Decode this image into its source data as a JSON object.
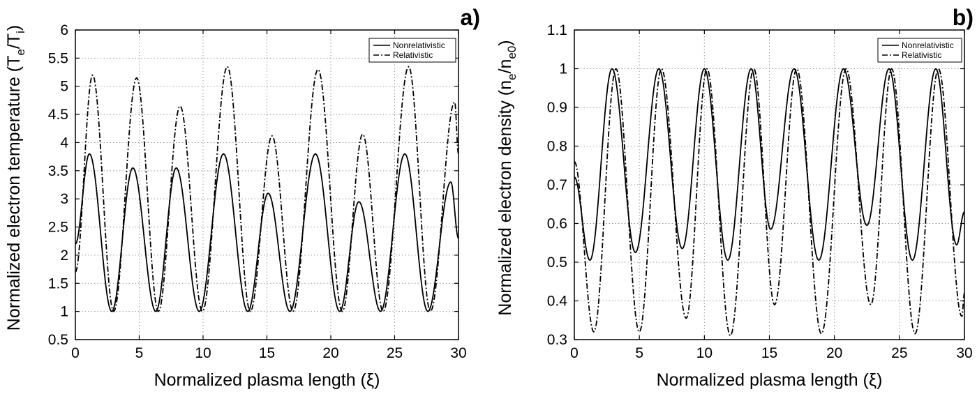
{
  "chart_data": [
    {
      "type": "line",
      "panel_label": "a)",
      "xlabel": "Normalized plasma length (ξ)",
      "ylabel": "Normalized electron temperature (T",
      "ylabel_sub1": "e",
      "ylabel_mid": "/T",
      "ylabel_sub2": "i",
      "ylabel_end": ")",
      "xlim": [
        0,
        30
      ],
      "ylim": [
        0.5,
        6
      ],
      "xticks": [
        "0",
        "5",
        "10",
        "15",
        "20",
        "25",
        "30"
      ],
      "yticks": [
        "0.5",
        "1",
        "1.5",
        "2",
        "2.5",
        "3",
        "3.5",
        "4",
        "4.5",
        "5",
        "5.5",
        "6"
      ],
      "grid": true,
      "legend_position": "top-right",
      "series": [
        {
          "name": "Nonrelativistic",
          "style": "solid",
          "x": [
            0,
            1.1,
            2.85,
            4.5,
            6.3,
            7.9,
            9.7,
            11.6,
            13.5,
            15.1,
            16.8,
            18.8,
            20.7,
            22.2,
            23.9,
            25.8,
            27.6,
            29.4,
            30
          ],
          "y": [
            2.2,
            3.8,
            1.0,
            3.55,
            1.0,
            3.55,
            1.0,
            3.8,
            1.0,
            3.1,
            1.0,
            3.8,
            1.0,
            2.95,
            1.0,
            3.8,
            1.0,
            3.3,
            2.3
          ]
        },
        {
          "name": "Relativistic",
          "style": "dashdot",
          "x": [
            0,
            1.35,
            3.0,
            4.8,
            6.5,
            8.2,
            9.95,
            11.9,
            13.7,
            15.4,
            17.05,
            19.0,
            20.9,
            22.5,
            24.1,
            26.1,
            27.8,
            29.7,
            30
          ],
          "y": [
            1.7,
            5.2,
            1.0,
            5.15,
            1.0,
            4.65,
            1.0,
            5.35,
            1.0,
            4.12,
            1.0,
            5.3,
            1.0,
            4.15,
            1.0,
            5.35,
            1.0,
            4.72,
            3.8
          ]
        }
      ]
    },
    {
      "type": "line",
      "panel_label": "b)",
      "xlabel": "Normalized plasma length (ξ)",
      "ylabel": "Normalized electron density (n",
      "ylabel_sub1": "e",
      "ylabel_mid": "/n",
      "ylabel_sub2": "e0",
      "ylabel_end": ")",
      "xlim": [
        0,
        30
      ],
      "ylim": [
        0.3,
        1.1
      ],
      "xticks": [
        "0",
        "5",
        "10",
        "15",
        "20",
        "25",
        "30"
      ],
      "yticks": [
        "0.3",
        "0.4",
        "0.5",
        "0.6",
        "0.7",
        "0.8",
        "0.9",
        "1",
        "1.1"
      ],
      "grid": true,
      "legend_position": "top-right",
      "series": [
        {
          "name": "Nonrelativistic",
          "style": "solid",
          "x": [
            0,
            1.2,
            2.9,
            4.7,
            6.5,
            8.3,
            10.0,
            11.8,
            13.6,
            15.1,
            16.9,
            18.8,
            20.7,
            22.5,
            24.2,
            26.0,
            27.8,
            29.4,
            30
          ],
          "y": [
            0.72,
            0.505,
            1.0,
            0.525,
            1.0,
            0.535,
            1.0,
            0.505,
            1.0,
            0.585,
            1.0,
            0.505,
            1.0,
            0.595,
            1.0,
            0.505,
            1.0,
            0.545,
            0.63
          ]
        },
        {
          "name": "Relativistic",
          "style": "dashdot",
          "x": [
            0,
            1.5,
            3.2,
            5.0,
            6.7,
            8.6,
            10.2,
            12.0,
            13.8,
            15.4,
            17.1,
            19.0,
            20.9,
            22.8,
            24.4,
            26.2,
            28.0,
            29.8,
            30
          ],
          "y": [
            0.76,
            0.32,
            1.0,
            0.32,
            1.0,
            0.355,
            1.0,
            0.31,
            1.0,
            0.39,
            1.0,
            0.315,
            1.0,
            0.39,
            1.0,
            0.315,
            1.0,
            0.36,
            0.42
          ]
        }
      ]
    }
  ]
}
